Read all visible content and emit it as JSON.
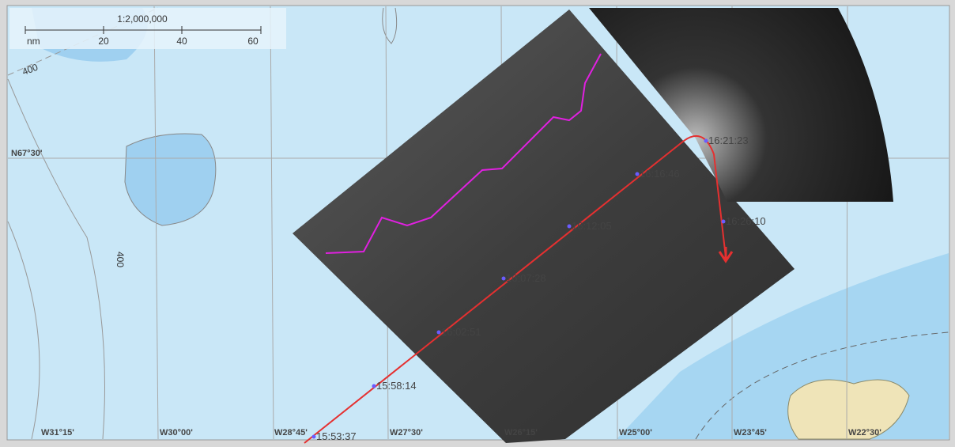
{
  "scale": {
    "ratio": "1:2,000,000",
    "unit": "nm",
    "ticks": [
      "20",
      "40",
      "60"
    ]
  },
  "grid": {
    "latitudes": [
      "N67°30'"
    ],
    "longitudes": [
      "W31°15'",
      "W30°00'",
      "W28°45'",
      "W27°30'",
      "W26°15'",
      "W25°00'",
      "W23°45'",
      "W22°30'"
    ]
  },
  "depth_labels": [
    "400",
    "400"
  ],
  "track": {
    "times": [
      "15:53:37",
      "15:58:14",
      "16:02:51",
      "16:07:28",
      "16:12:05",
      "16:16:46",
      "16:21:23",
      "16:26:10"
    ]
  }
}
